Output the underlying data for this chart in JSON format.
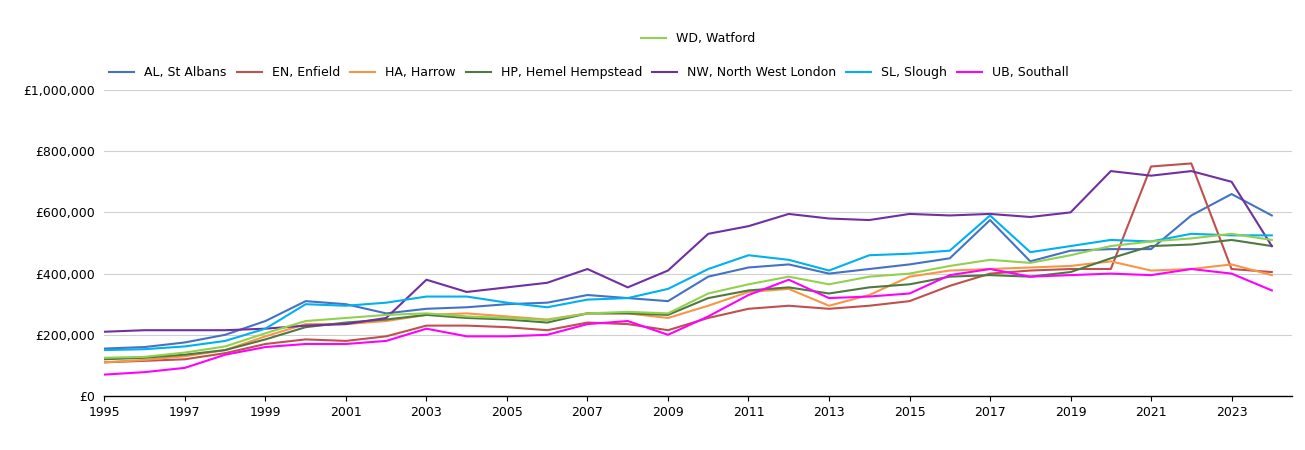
{
  "series": {
    "AL, St Albans": {
      "color": "#4472C4",
      "values": [
        155000,
        160000,
        175000,
        200000,
        245000,
        310000,
        300000,
        270000,
        285000,
        290000,
        300000,
        305000,
        330000,
        320000,
        310000,
        390000,
        420000,
        430000,
        400000,
        415000,
        430000,
        450000,
        575000,
        440000,
        475000,
        480000,
        480000,
        590000,
        660000,
        590000
      ]
    },
    "EN, Enfield": {
      "color": "#C0504D",
      "values": [
        110000,
        115000,
        120000,
        140000,
        170000,
        185000,
        180000,
        195000,
        230000,
        230000,
        225000,
        215000,
        240000,
        235000,
        215000,
        255000,
        285000,
        295000,
        285000,
        295000,
        310000,
        360000,
        400000,
        410000,
        415000,
        415000,
        750000,
        760000,
        415000,
        405000
      ]
    },
    "HA, Harrow": {
      "color": "#F79646",
      "values": [
        110000,
        118000,
        130000,
        150000,
        195000,
        235000,
        235000,
        245000,
        265000,
        270000,
        260000,
        250000,
        270000,
        270000,
        255000,
        295000,
        340000,
        350000,
        295000,
        330000,
        390000,
        410000,
        415000,
        420000,
        425000,
        440000,
        410000,
        415000,
        430000,
        395000
      ]
    },
    "HP, Hemel Hempstead": {
      "color": "#4F7942",
      "values": [
        120000,
        125000,
        135000,
        150000,
        185000,
        225000,
        240000,
        250000,
        265000,
        255000,
        250000,
        240000,
        270000,
        270000,
        265000,
        320000,
        345000,
        355000,
        335000,
        355000,
        365000,
        390000,
        395000,
        390000,
        405000,
        450000,
        490000,
        495000,
        510000,
        490000
      ]
    },
    "NW, North West London": {
      "color": "#7030A0",
      "values": [
        210000,
        215000,
        215000,
        215000,
        220000,
        230000,
        235000,
        255000,
        380000,
        340000,
        355000,
        370000,
        415000,
        355000,
        410000,
        530000,
        555000,
        595000,
        580000,
        575000,
        595000,
        590000,
        595000,
        585000,
        600000,
        735000,
        720000,
        735000,
        700000,
        490000
      ]
    },
    "SL, Slough": {
      "color": "#00B0F0",
      "values": [
        150000,
        153000,
        162000,
        180000,
        220000,
        300000,
        295000,
        305000,
        325000,
        325000,
        305000,
        290000,
        315000,
        320000,
        350000,
        415000,
        460000,
        445000,
        410000,
        460000,
        465000,
        475000,
        590000,
        470000,
        490000,
        510000,
        505000,
        530000,
        525000,
        525000
      ]
    },
    "UB, Southall": {
      "color": "#FF00FF",
      "values": [
        70000,
        78000,
        92000,
        135000,
        160000,
        170000,
        170000,
        180000,
        220000,
        195000,
        195000,
        200000,
        235000,
        245000,
        200000,
        260000,
        330000,
        380000,
        320000,
        325000,
        335000,
        395000,
        415000,
        390000,
        395000,
        400000,
        395000,
        415000,
        400000,
        345000
      ]
    },
    "WD, Watford": {
      "color": "#92D050",
      "values": [
        125000,
        128000,
        142000,
        162000,
        205000,
        245000,
        255000,
        265000,
        270000,
        260000,
        255000,
        248000,
        270000,
        275000,
        270000,
        335000,
        365000,
        390000,
        365000,
        390000,
        400000,
        425000,
        445000,
        435000,
        460000,
        490000,
        505000,
        515000,
        530000,
        510000
      ]
    }
  },
  "years": [
    1995,
    1996,
    1997,
    1998,
    1999,
    2000,
    2001,
    2002,
    2003,
    2004,
    2005,
    2006,
    2007,
    2008,
    2009,
    2010,
    2011,
    2012,
    2013,
    2014,
    2015,
    2016,
    2017,
    2018,
    2019,
    2020,
    2021,
    2022,
    2023,
    2024
  ],
  "ylim": [
    0,
    1000000
  ],
  "yticks": [
    0,
    200000,
    400000,
    600000,
    800000,
    1000000
  ],
  "xticks": [
    1995,
    1997,
    1999,
    2001,
    2003,
    2005,
    2007,
    2009,
    2011,
    2013,
    2015,
    2017,
    2019,
    2021,
    2023
  ],
  "xlim_left": 1995,
  "xlim_right": 2024.5,
  "grid_color": "#d0d0d0",
  "legend_row1": [
    "AL, St Albans",
    "EN, Enfield",
    "HA, Harrow",
    "HP, Hemel Hempstead",
    "NW, North West London",
    "SL, Slough",
    "UB, Southall"
  ],
  "legend_row2": [
    "WD, Watford"
  ]
}
